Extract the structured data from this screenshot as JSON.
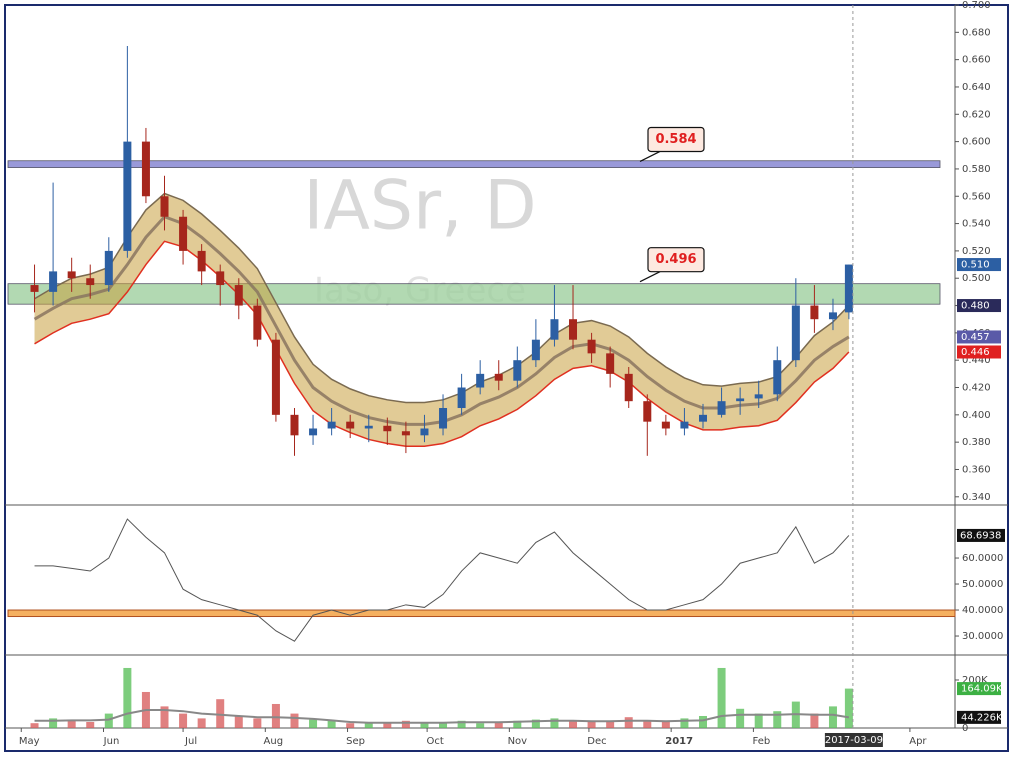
{
  "chart_data": {
    "type": "candlestick",
    "watermark": "IASr, D",
    "subtitle": "Iaso, Greece",
    "xlim": [
      "2016-04-26",
      "2017-04-18"
    ],
    "xticks": [
      {
        "value": "2016-05-01",
        "label": "May"
      },
      {
        "value": "2016-06-01",
        "label": "Jun"
      },
      {
        "value": "2016-07-01",
        "label": "Jul"
      },
      {
        "value": "2016-08-01",
        "label": "Aug"
      },
      {
        "value": "2016-09-01",
        "label": "Sep"
      },
      {
        "value": "2016-10-01",
        "label": "Oct"
      },
      {
        "value": "2016-11-01",
        "label": "Nov"
      },
      {
        "value": "2016-12-01",
        "label": "Dec"
      },
      {
        "value": "2017-01-01",
        "label": "2017"
      },
      {
        "value": "2017-02-01",
        "label": "Feb"
      },
      {
        "value": "2017-04-01",
        "label": "Apr"
      }
    ],
    "cursor_date": "2017-03-09",
    "x": [
      "2016-05-06",
      "2016-05-13",
      "2016-05-20",
      "2016-05-27",
      "2016-06-03",
      "2016-06-10",
      "2016-06-17",
      "2016-06-24",
      "2016-07-01",
      "2016-07-08",
      "2016-07-15",
      "2016-07-22",
      "2016-07-29",
      "2016-08-05",
      "2016-08-12",
      "2016-08-19",
      "2016-08-26",
      "2016-09-02",
      "2016-09-09",
      "2016-09-16",
      "2016-09-23",
      "2016-09-30",
      "2016-10-07",
      "2016-10-14",
      "2016-10-21",
      "2016-10-28",
      "2016-11-04",
      "2016-11-11",
      "2016-11-18",
      "2016-11-25",
      "2016-12-02",
      "2016-12-09",
      "2016-12-16",
      "2016-12-23",
      "2016-12-30",
      "2017-01-06",
      "2017-01-13",
      "2017-01-20",
      "2017-01-27",
      "2017-02-03",
      "2017-02-10",
      "2017-02-17",
      "2017-02-24",
      "2017-03-03",
      "2017-03-09"
    ],
    "open": [
      0.495,
      0.49,
      0.505,
      0.5,
      0.495,
      0.52,
      0.6,
      0.56,
      0.545,
      0.52,
      0.505,
      0.495,
      0.48,
      0.455,
      0.4,
      0.385,
      0.39,
      0.395,
      0.39,
      0.392,
      0.388,
      0.385,
      0.39,
      0.405,
      0.42,
      0.43,
      0.425,
      0.44,
      0.455,
      0.47,
      0.455,
      0.445,
      0.43,
      0.41,
      0.395,
      0.39,
      0.395,
      0.4,
      0.41,
      0.412,
      0.415,
      0.44,
      0.48,
      0.47,
      0.475
    ],
    "high": [
      0.51,
      0.57,
      0.515,
      0.51,
      0.53,
      0.67,
      0.61,
      0.575,
      0.55,
      0.525,
      0.51,
      0.5,
      0.485,
      0.46,
      0.405,
      0.4,
      0.405,
      0.4,
      0.4,
      0.398,
      0.395,
      0.4,
      0.415,
      0.43,
      0.44,
      0.44,
      0.45,
      0.47,
      0.495,
      0.495,
      0.46,
      0.45,
      0.435,
      0.415,
      0.4,
      0.405,
      0.408,
      0.42,
      0.42,
      0.425,
      0.45,
      0.5,
      0.495,
      0.485,
      0.51
    ],
    "low": [
      0.475,
      0.48,
      0.49,
      0.485,
      0.49,
      0.515,
      0.555,
      0.535,
      0.51,
      0.495,
      0.48,
      0.47,
      0.45,
      0.395,
      0.37,
      0.378,
      0.385,
      0.383,
      0.38,
      0.378,
      0.372,
      0.38,
      0.385,
      0.4,
      0.415,
      0.418,
      0.42,
      0.435,
      0.45,
      0.448,
      0.438,
      0.42,
      0.405,
      0.37,
      0.385,
      0.385,
      0.39,
      0.398,
      0.4,
      0.405,
      0.41,
      0.435,
      0.46,
      0.462,
      0.47
    ],
    "close": [
      0.49,
      0.505,
      0.5,
      0.495,
      0.52,
      0.6,
      0.56,
      0.545,
      0.52,
      0.505,
      0.495,
      0.48,
      0.455,
      0.4,
      0.385,
      0.39,
      0.395,
      0.39,
      0.392,
      0.388,
      0.385,
      0.39,
      0.405,
      0.42,
      0.43,
      0.425,
      0.44,
      0.455,
      0.47,
      0.455,
      0.445,
      0.43,
      0.41,
      0.395,
      0.39,
      0.395,
      0.4,
      0.41,
      0.412,
      0.415,
      0.44,
      0.48,
      0.47,
      0.475,
      0.51
    ],
    "up_color": "#2c5fa3",
    "down_color": "#a6261c",
    "ylim": [
      0.334,
      0.7
    ],
    "yticks": [
      {
        "value": 0.34,
        "label": "0.340"
      },
      {
        "value": 0.36,
        "label": "0.360"
      },
      {
        "value": 0.38,
        "label": "0.380"
      },
      {
        "value": 0.4,
        "label": "0.400"
      },
      {
        "value": 0.42,
        "label": "0.420"
      },
      {
        "value": 0.44,
        "label": "0.440"
      },
      {
        "value": 0.46,
        "label": "0.460"
      },
      {
        "value": 0.48,
        "label": "0.480"
      },
      {
        "value": 0.5,
        "label": "0.500"
      },
      {
        "value": 0.52,
        "label": "0.520"
      },
      {
        "value": 0.54,
        "label": "0.540"
      },
      {
        "value": 0.56,
        "label": "0.560"
      },
      {
        "value": 0.58,
        "label": "0.580"
      },
      {
        "value": 0.6,
        "label": "0.600"
      },
      {
        "value": 0.62,
        "label": "0.620"
      },
      {
        "value": 0.64,
        "label": "0.640"
      },
      {
        "value": 0.66,
        "label": "0.660"
      },
      {
        "value": 0.68,
        "label": "0.680"
      },
      {
        "value": 0.7,
        "label": "0.700"
      }
    ],
    "band_fill": "#c8a040",
    "overlays": [
      {
        "color": "#8a7560",
        "values": [
          0.47,
          0.478,
          0.485,
          0.488,
          0.492,
          0.51,
          0.53,
          0.545,
          0.54,
          0.53,
          0.518,
          0.505,
          0.49,
          0.465,
          0.44,
          0.42,
          0.41,
          0.403,
          0.398,
          0.395,
          0.393,
          0.393,
          0.395,
          0.4,
          0.408,
          0.413,
          0.42,
          0.43,
          0.442,
          0.45,
          0.452,
          0.448,
          0.44,
          0.428,
          0.418,
          0.41,
          0.405,
          0.405,
          0.407,
          0.408,
          0.412,
          0.425,
          0.44,
          0.45,
          0.457
        ]
      },
      {
        "color": "#7a6a50",
        "values": [
          0.485,
          0.493,
          0.5,
          0.503,
          0.508,
          0.53,
          0.55,
          0.562,
          0.557,
          0.547,
          0.535,
          0.522,
          0.507,
          0.482,
          0.457,
          0.437,
          0.426,
          0.419,
          0.414,
          0.411,
          0.409,
          0.409,
          0.411,
          0.416,
          0.424,
          0.429,
          0.436,
          0.446,
          0.459,
          0.467,
          0.469,
          0.465,
          0.457,
          0.445,
          0.435,
          0.427,
          0.422,
          0.421,
          0.423,
          0.424,
          0.428,
          0.442,
          0.458,
          0.468,
          0.48
        ]
      },
      {
        "color": "#e03020",
        "values": [
          0.452,
          0.46,
          0.467,
          0.47,
          0.474,
          0.49,
          0.51,
          0.527,
          0.523,
          0.513,
          0.501,
          0.488,
          0.473,
          0.448,
          0.423,
          0.403,
          0.393,
          0.387,
          0.382,
          0.379,
          0.377,
          0.377,
          0.379,
          0.384,
          0.392,
          0.397,
          0.404,
          0.414,
          0.426,
          0.434,
          0.436,
          0.432,
          0.424,
          0.412,
          0.402,
          0.394,
          0.389,
          0.389,
          0.391,
          0.392,
          0.396,
          0.409,
          0.424,
          0.434,
          0.446
        ]
      }
    ],
    "levels": [
      {
        "label": 0.584,
        "low": 0.581,
        "high": 0.586,
        "color": "#8080d0"
      },
      {
        "label": 0.496,
        "low": 0.481,
        "high": 0.496,
        "color": "#9fd09f"
      }
    ],
    "price_badges": [
      {
        "value": 0.51,
        "label": "0.510",
        "color": "#2c5fa3"
      },
      {
        "value": 0.48,
        "label": "0.480",
        "color": "#2a2a5a"
      },
      {
        "value": 0.457,
        "label": "0.457",
        "color": "#5a5aa8"
      },
      {
        "value": 0.446,
        "label": "0.446",
        "color": "#e02020"
      }
    ],
    "rsi": {
      "ylim": [
        22.7,
        80.4
      ],
      "yticks": [
        {
          "value": 30,
          "label": "30.0000"
        },
        {
          "value": 40,
          "label": "40.0000"
        },
        {
          "value": 50,
          "label": "50.0000"
        },
        {
          "value": 60,
          "label": "60.0000"
        }
      ],
      "band": [
        37.5,
        40
      ],
      "band_color": "#f5b060",
      "color": "#555555",
      "values": [
        57,
        57,
        56,
        55,
        60,
        75,
        68,
        62,
        48,
        44,
        42,
        40,
        38,
        32,
        28,
        38,
        40,
        38,
        40,
        40,
        42,
        41,
        46,
        55,
        62,
        60,
        58,
        66,
        70,
        62,
        56,
        50,
        44,
        40,
        40,
        42,
        44,
        50,
        58,
        60,
        62,
        72,
        58,
        62,
        68.6938
      ]
    },
    "volume": {
      "ylim": [
        0,
        304000
      ],
      "yticks": [
        0,
        {
          "value": 200000,
          "label": "200K"
        }
      ],
      "up_color": "#5cc05c",
      "down_color": "#d86060",
      "ma_color": "#888888",
      "values": [
        20000,
        40000,
        30000,
        25000,
        60000,
        250000,
        150000,
        90000,
        60000,
        40000,
        120000,
        50000,
        40000,
        100000,
        60000,
        35000,
        30000,
        20000,
        25000,
        20000,
        30000,
        20000,
        25000,
        30000,
        20000,
        25000,
        30000,
        35000,
        40000,
        30000,
        25000,
        30000,
        45000,
        30000,
        25000,
        40000,
        50000,
        250000,
        80000,
        60000,
        70000,
        110000,
        60000,
        90000,
        164090
      ],
      "ma": [
        30000,
        30000,
        32000,
        32000,
        35000,
        60000,
        75000,
        75000,
        70000,
        60000,
        55000,
        50000,
        45000,
        45000,
        42000,
        38000,
        32000,
        25000,
        22000,
        22000,
        22000,
        22000,
        22000,
        24000,
        24000,
        24000,
        26000,
        28000,
        30000,
        30000,
        28000,
        28000,
        30000,
        30000,
        28000,
        30000,
        32000,
        50000,
        55000,
        55000,
        55000,
        58000,
        55000,
        55000,
        44226
      ],
      "badges": [
        {
          "value": 164090,
          "label": "164.09K",
          "color": "#3cb043"
        },
        {
          "value": 44226,
          "label": "44.226K",
          "color": "#111111"
        }
      ]
    }
  }
}
